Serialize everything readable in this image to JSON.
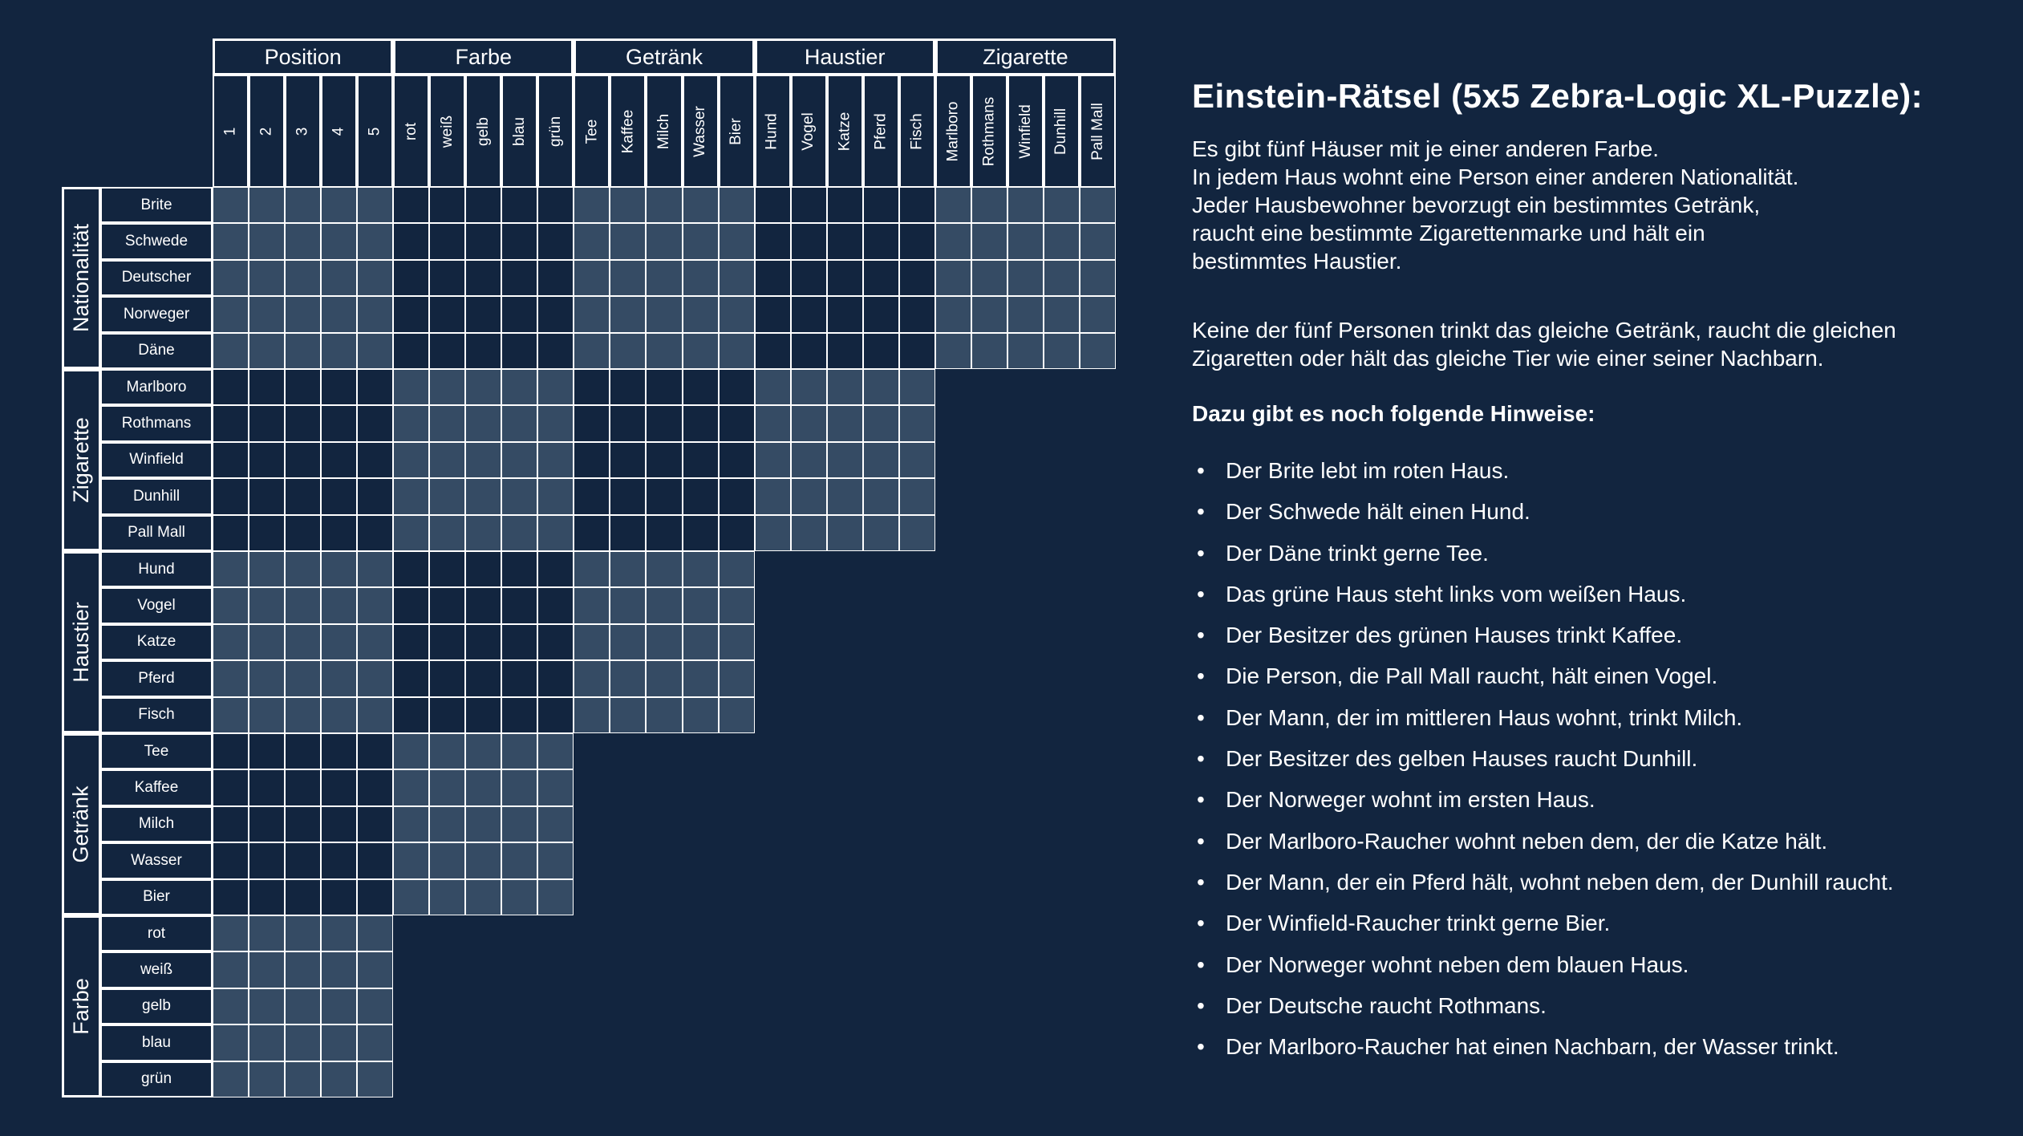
{
  "grid": {
    "column_groups": [
      {
        "label": "Position",
        "items": [
          "1",
          "2",
          "3",
          "4",
          "5"
        ]
      },
      {
        "label": "Farbe",
        "items": [
          "rot",
          "weiß",
          "gelb",
          "blau",
          "grün"
        ]
      },
      {
        "label": "Getränk",
        "items": [
          "Tee",
          "Kaffee",
          "Milch",
          "Wasser",
          "Bier"
        ]
      },
      {
        "label": "Haustier",
        "items": [
          "Hund",
          "Vogel",
          "Katze",
          "Pferd",
          "Fisch"
        ]
      },
      {
        "label": "Zigarette",
        "items": [
          "Marlboro",
          "Rothmans",
          "Winfield",
          "Dunhill",
          "Pall Mall"
        ]
      }
    ],
    "row_groups": [
      {
        "label": "Nationalität",
        "items": [
          "Brite",
          "Schwede",
          "Deutscher",
          "Norweger",
          "Däne"
        ]
      },
      {
        "label": "Zigarette",
        "items": [
          "Marlboro",
          "Rothmans",
          "Winfield",
          "Dunhill",
          "Pall Mall"
        ]
      },
      {
        "label": "Haustier",
        "items": [
          "Hund",
          "Vogel",
          "Katze",
          "Pferd",
          "Fisch"
        ]
      },
      {
        "label": "Getränk",
        "items": [
          "Tee",
          "Kaffee",
          "Milch",
          "Wasser",
          "Bier"
        ]
      },
      {
        "label": "Farbe",
        "items": [
          "rot",
          "weiß",
          "gelb",
          "blau",
          "grün"
        ]
      }
    ],
    "colors": {
      "background": "#12253f",
      "shaded_cell": "#354b64",
      "lines": "#ffffff"
    }
  },
  "panel": {
    "title": "Einstein-Rätsel (5x5 Zebra-Logic XL-Puzzle):",
    "intro_lines": [
      "Es gibt fünf Häuser mit je einer anderen Farbe.",
      "In jedem Haus wohnt eine Person einer anderen Nationalität.",
      "Jeder Hausbewohner bevorzugt ein bestimmtes Getränk,",
      "raucht eine bestimmte Zigarettenmarke und hält ein",
      "bestimmtes Haustier."
    ],
    "rule_lines": [
      "Keine der fünf Personen trinkt das gleiche Getränk, raucht die gleichen",
      "Zigaretten oder hält das gleiche Tier wie einer seiner Nachbarn."
    ],
    "hints_heading": "Dazu gibt es noch folgende Hinweise:",
    "bullet_char": "•",
    "hints": [
      "Der Brite lebt im roten Haus.",
      "Der Schwede hält einen Hund.",
      "Der Däne trinkt gerne Tee.",
      "Das grüne Haus steht links vom weißen Haus.",
      "Der Besitzer des grünen Hauses trinkt Kaffee.",
      "Die Person, die Pall Mall raucht, hält einen Vogel.",
      "Der Mann, der im mittleren Haus wohnt, trinkt Milch.",
      "Der Besitzer des gelben Hauses raucht Dunhill.",
      "Der Norweger wohnt im ersten Haus.",
      "Der Marlboro-Raucher wohnt neben dem, der die Katze hält.",
      "Der Mann, der ein Pferd hält, wohnt neben dem, der Dunhill raucht.",
      "Der Winfield-Raucher trinkt gerne Bier.",
      "Der Norweger wohnt neben dem blauen Haus.",
      "Der Deutsche raucht Rothmans.",
      "Der Marlboro-Raucher hat einen Nachbarn, der Wasser trinkt."
    ]
  }
}
